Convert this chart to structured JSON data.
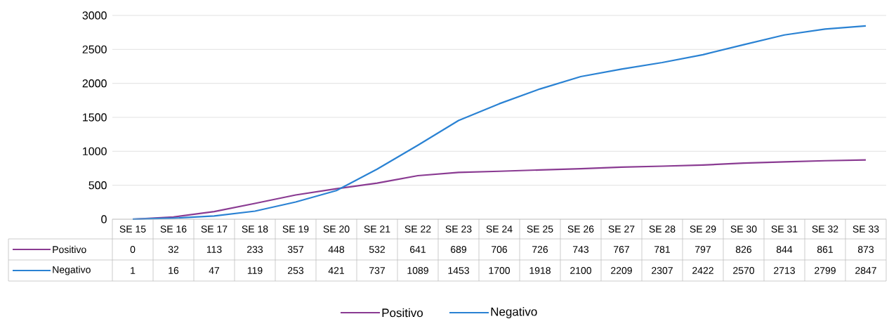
{
  "chart_data": {
    "type": "line",
    "categories": [
      "SE 15",
      "SE 16",
      "SE 17",
      "SE 18",
      "SE 19",
      "SE 20",
      "SE 21",
      "SE 22",
      "SE 23",
      "SE 24",
      "SE 25",
      "SE 26",
      "SE 27",
      "SE 28",
      "SE 29",
      "SE 30",
      "SE 31",
      "SE 32",
      "SE 33"
    ],
    "series": [
      {
        "name": "Positivo",
        "color": "#8a3b92",
        "values": [
          0,
          32,
          113,
          233,
          357,
          448,
          532,
          641,
          689,
          706,
          726,
          743,
          767,
          781,
          797,
          826,
          844,
          861,
          873
        ]
      },
      {
        "name": "Negativo",
        "color": "#2a82d3",
        "values": [
          1,
          16,
          47,
          119,
          253,
          421,
          737,
          1089,
          1453,
          1700,
          1918,
          2100,
          2209,
          2307,
          2422,
          2570,
          2713,
          2799,
          2847
        ]
      }
    ],
    "ylim": [
      0,
      3000
    ],
    "yticks": [
      0,
      500,
      1000,
      1500,
      2000,
      2500,
      3000
    ],
    "grid": "y",
    "legend": "bottom",
    "data_labels": true
  }
}
